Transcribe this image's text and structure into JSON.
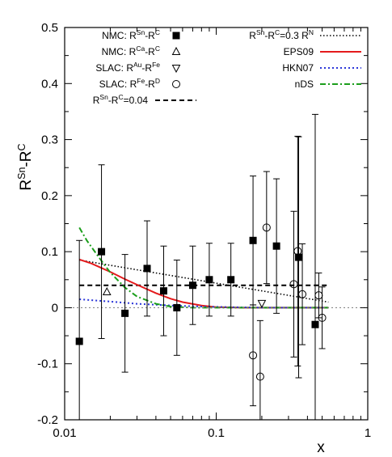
{
  "chart_data": {
    "type": "scatter",
    "title": "",
    "xlabel": "x",
    "ylabel": {
      "base": "R",
      "sup1": "Sn",
      "dash": "-R",
      "sup2": "C"
    },
    "xscale": "log",
    "xlim": [
      0.01,
      1
    ],
    "ylim": [
      -0.2,
      0.5
    ],
    "xticks": [
      {
        "value": 0.01,
        "label": "0.01"
      },
      {
        "value": 0.1,
        "label": "0.1"
      },
      {
        "value": 1,
        "label": "1"
      }
    ],
    "yticks": [
      {
        "value": -0.2,
        "label": "-0.2"
      },
      {
        "value": -0.1,
        "label": "-0.1"
      },
      {
        "value": 0,
        "label": "0"
      },
      {
        "value": 0.1,
        "label": "0.1"
      },
      {
        "value": 0.2,
        "label": "0.2"
      },
      {
        "value": 0.3,
        "label": "0.3"
      },
      {
        "value": 0.4,
        "label": "0.4"
      },
      {
        "value": 0.5,
        "label": "0.5"
      }
    ],
    "zero_line": true,
    "grid": false,
    "legend_left_position": "top-left",
    "legend_right_position": "top-right",
    "series": [
      {
        "legend": {
          "pre": "NMC: R",
          "sup1": "Sn",
          "mid": "-R",
          "sup2": "C"
        },
        "marker": "filled-square",
        "points": [
          {
            "x": 0.0125,
            "y": -0.06,
            "err": 0.18
          },
          {
            "x": 0.0175,
            "y": 0.1,
            "err": 0.155
          },
          {
            "x": 0.025,
            "y": -0.01,
            "err": 0.105
          },
          {
            "x": 0.035,
            "y": 0.07,
            "err": 0.085
          },
          {
            "x": 0.045,
            "y": 0.03,
            "err": 0.08
          },
          {
            "x": 0.055,
            "y": 0.0,
            "err": 0.085
          },
          {
            "x": 0.07,
            "y": 0.04,
            "err": 0.07
          },
          {
            "x": 0.09,
            "y": 0.05,
            "err": 0.065
          },
          {
            "x": 0.125,
            "y": 0.05,
            "err": 0.065
          },
          {
            "x": 0.175,
            "y": 0.12,
            "err": 0.115
          },
          {
            "x": 0.25,
            "y": 0.11,
            "err": 0.12
          },
          {
            "x": 0.35,
            "y": 0.09,
            "err": 0.215
          },
          {
            "x": 0.45,
            "y": -0.03,
            "err": 0.375
          }
        ]
      },
      {
        "legend": {
          "pre": "NMC: R",
          "sup1": "Ca",
          "mid": "-R",
          "sup2": "C"
        },
        "marker": "open-triangle-up",
        "points": [
          {
            "x": 0.019,
            "y": 0.028
          }
        ]
      },
      {
        "legend": {
          "pre": "SLAC: R",
          "sup1": "Au",
          "mid": "-R",
          "sup2": "Fe"
        },
        "marker": "open-triangle-down",
        "points": [
          {
            "x": 0.2,
            "y": 0.008
          }
        ]
      },
      {
        "legend": {
          "pre": "SLAC: R",
          "sup1": "Fe",
          "mid": "-R",
          "sup2": "D"
        },
        "marker": "open-circle",
        "points": [
          {
            "x": 0.175,
            "y": -0.085,
            "err": 0.09
          },
          {
            "x": 0.195,
            "y": -0.123,
            "err": 0.1
          },
          {
            "x": 0.215,
            "y": 0.143,
            "err": 0.1
          },
          {
            "x": 0.325,
            "y": 0.042,
            "err": 0.13
          },
          {
            "x": 0.345,
            "y": 0.101,
            "err": 0.205
          },
          {
            "x": 0.37,
            "y": 0.024,
            "err": 0.09
          },
          {
            "x": 0.475,
            "y": 0.022,
            "err": 0.04
          },
          {
            "x": 0.5,
            "y": -0.018,
            "err": 0.055
          }
        ]
      }
    ],
    "curves": [
      {
        "legend": {
          "pre": "R",
          "sup1": "Sn",
          "mid": "-R",
          "sup2": "C",
          "post": "=0.04"
        },
        "style": "dashed-black",
        "color": "#000000",
        "points": [
          {
            "x": 0.0125,
            "y": 0.04
          },
          {
            "x": 0.55,
            "y": 0.04
          }
        ]
      },
      {
        "legend": {
          "pre": "R",
          "sup1": "Sn",
          "mid": "-R",
          "sup2": "C",
          "post": "=0.3 R",
          "sup3": "N"
        },
        "style": "dotted-black",
        "color": "#000000",
        "points": [
          {
            "x": 0.0125,
            "y": 0.085
          },
          {
            "x": 0.55,
            "y": 0.01
          }
        ]
      },
      {
        "legend": {
          "pre": "EPS09"
        },
        "style": "solid-red",
        "color": "#e41a1c",
        "points": [
          {
            "x": 0.0125,
            "y": 0.086
          },
          {
            "x": 0.015,
            "y": 0.079
          },
          {
            "x": 0.02,
            "y": 0.064
          },
          {
            "x": 0.025,
            "y": 0.051
          },
          {
            "x": 0.03,
            "y": 0.041
          },
          {
            "x": 0.04,
            "y": 0.026
          },
          {
            "x": 0.05,
            "y": 0.016
          },
          {
            "x": 0.06,
            "y": 0.01
          },
          {
            "x": 0.08,
            "y": 0.004
          },
          {
            "x": 0.1,
            "y": 0.001
          },
          {
            "x": 0.15,
            "y": 0.0
          },
          {
            "x": 0.3,
            "y": 0.0
          },
          {
            "x": 0.55,
            "y": 0.0
          }
        ]
      },
      {
        "legend": {
          "pre": "HKN07"
        },
        "style": "dotted-blue",
        "color": "#2b36d9",
        "points": [
          {
            "x": 0.0125,
            "y": 0.015
          },
          {
            "x": 0.02,
            "y": 0.011
          },
          {
            "x": 0.03,
            "y": 0.007
          },
          {
            "x": 0.05,
            "y": 0.004
          },
          {
            "x": 0.08,
            "y": 0.002
          },
          {
            "x": 0.12,
            "y": 0.001
          },
          {
            "x": 0.2,
            "y": 0.0
          },
          {
            "x": 0.55,
            "y": 0.0
          }
        ]
      },
      {
        "legend": {
          "pre": "nDS"
        },
        "style": "dash-dot-green",
        "color": "#1b9e1b",
        "points": [
          {
            "x": 0.0125,
            "y": 0.143
          },
          {
            "x": 0.014,
            "y": 0.12
          },
          {
            "x": 0.016,
            "y": 0.098
          },
          {
            "x": 0.018,
            "y": 0.079
          },
          {
            "x": 0.02,
            "y": 0.063
          },
          {
            "x": 0.025,
            "y": 0.036
          },
          {
            "x": 0.03,
            "y": 0.02
          },
          {
            "x": 0.04,
            "y": 0.007
          },
          {
            "x": 0.05,
            "y": 0.002
          },
          {
            "x": 0.07,
            "y": 0.0
          },
          {
            "x": 0.55,
            "y": 0.0
          }
        ]
      }
    ]
  }
}
